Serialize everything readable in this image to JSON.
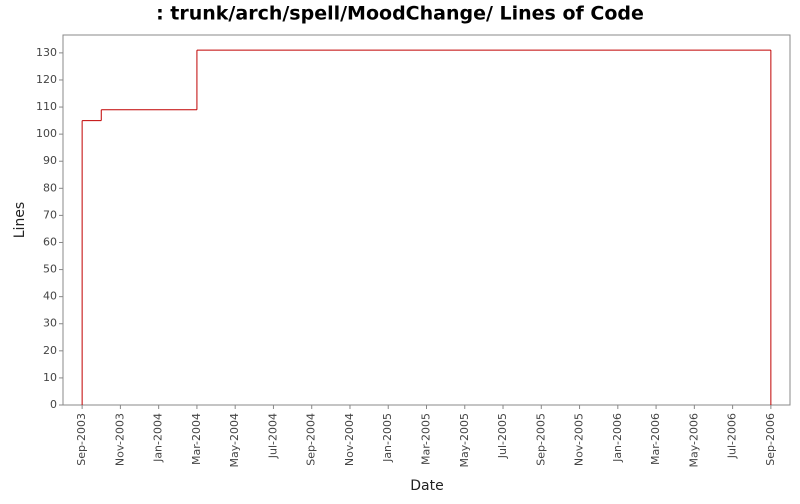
{
  "chart_data": {
    "type": "step",
    "title": ": trunk/arch/spell/MoodChange/ Lines of Code",
    "x_label": "Date",
    "y_label": "Lines",
    "x": [
      "2003-09",
      "2003-10",
      "2004-03",
      "2006-09"
    ],
    "series": [
      {
        "name": "Lines",
        "color": "#c00000",
        "values": [
          105,
          109,
          131,
          0
        ]
      }
    ],
    "xlim": [
      "2003-08",
      "2006-10"
    ],
    "xticks": [
      {
        "value": "2003-09",
        "label": "Sep-2003"
      },
      {
        "value": "2003-11",
        "label": "Nov-2003"
      },
      {
        "value": "2004-01",
        "label": "Jan-2004"
      },
      {
        "value": "2004-03",
        "label": "Mar-2004"
      },
      {
        "value": "2004-05",
        "label": "May-2004"
      },
      {
        "value": "2004-07",
        "label": "Jul-2004"
      },
      {
        "value": "2004-09",
        "label": "Sep-2004"
      },
      {
        "value": "2004-11",
        "label": "Nov-2004"
      },
      {
        "value": "2005-01",
        "label": "Jan-2005"
      },
      {
        "value": "2005-03",
        "label": "Mar-2005"
      },
      {
        "value": "2005-05",
        "label": "May-2005"
      },
      {
        "value": "2005-07",
        "label": "Jul-2005"
      },
      {
        "value": "2005-09",
        "label": "Sep-2005"
      },
      {
        "value": "2005-11",
        "label": "Nov-2005"
      },
      {
        "value": "2006-01",
        "label": "Jan-2006"
      },
      {
        "value": "2006-03",
        "label": "Mar-2006"
      },
      {
        "value": "2006-05",
        "label": "May-2006"
      },
      {
        "value": "2006-07",
        "label": "Jul-2006"
      },
      {
        "value": "2006-09",
        "label": "Sep-2006"
      }
    ],
    "ylim": [
      0,
      136.6
    ],
    "yticks": [
      0,
      10,
      20,
      30,
      40,
      50,
      60,
      70,
      80,
      90,
      100,
      110,
      120,
      130
    ],
    "grid": false
  }
}
